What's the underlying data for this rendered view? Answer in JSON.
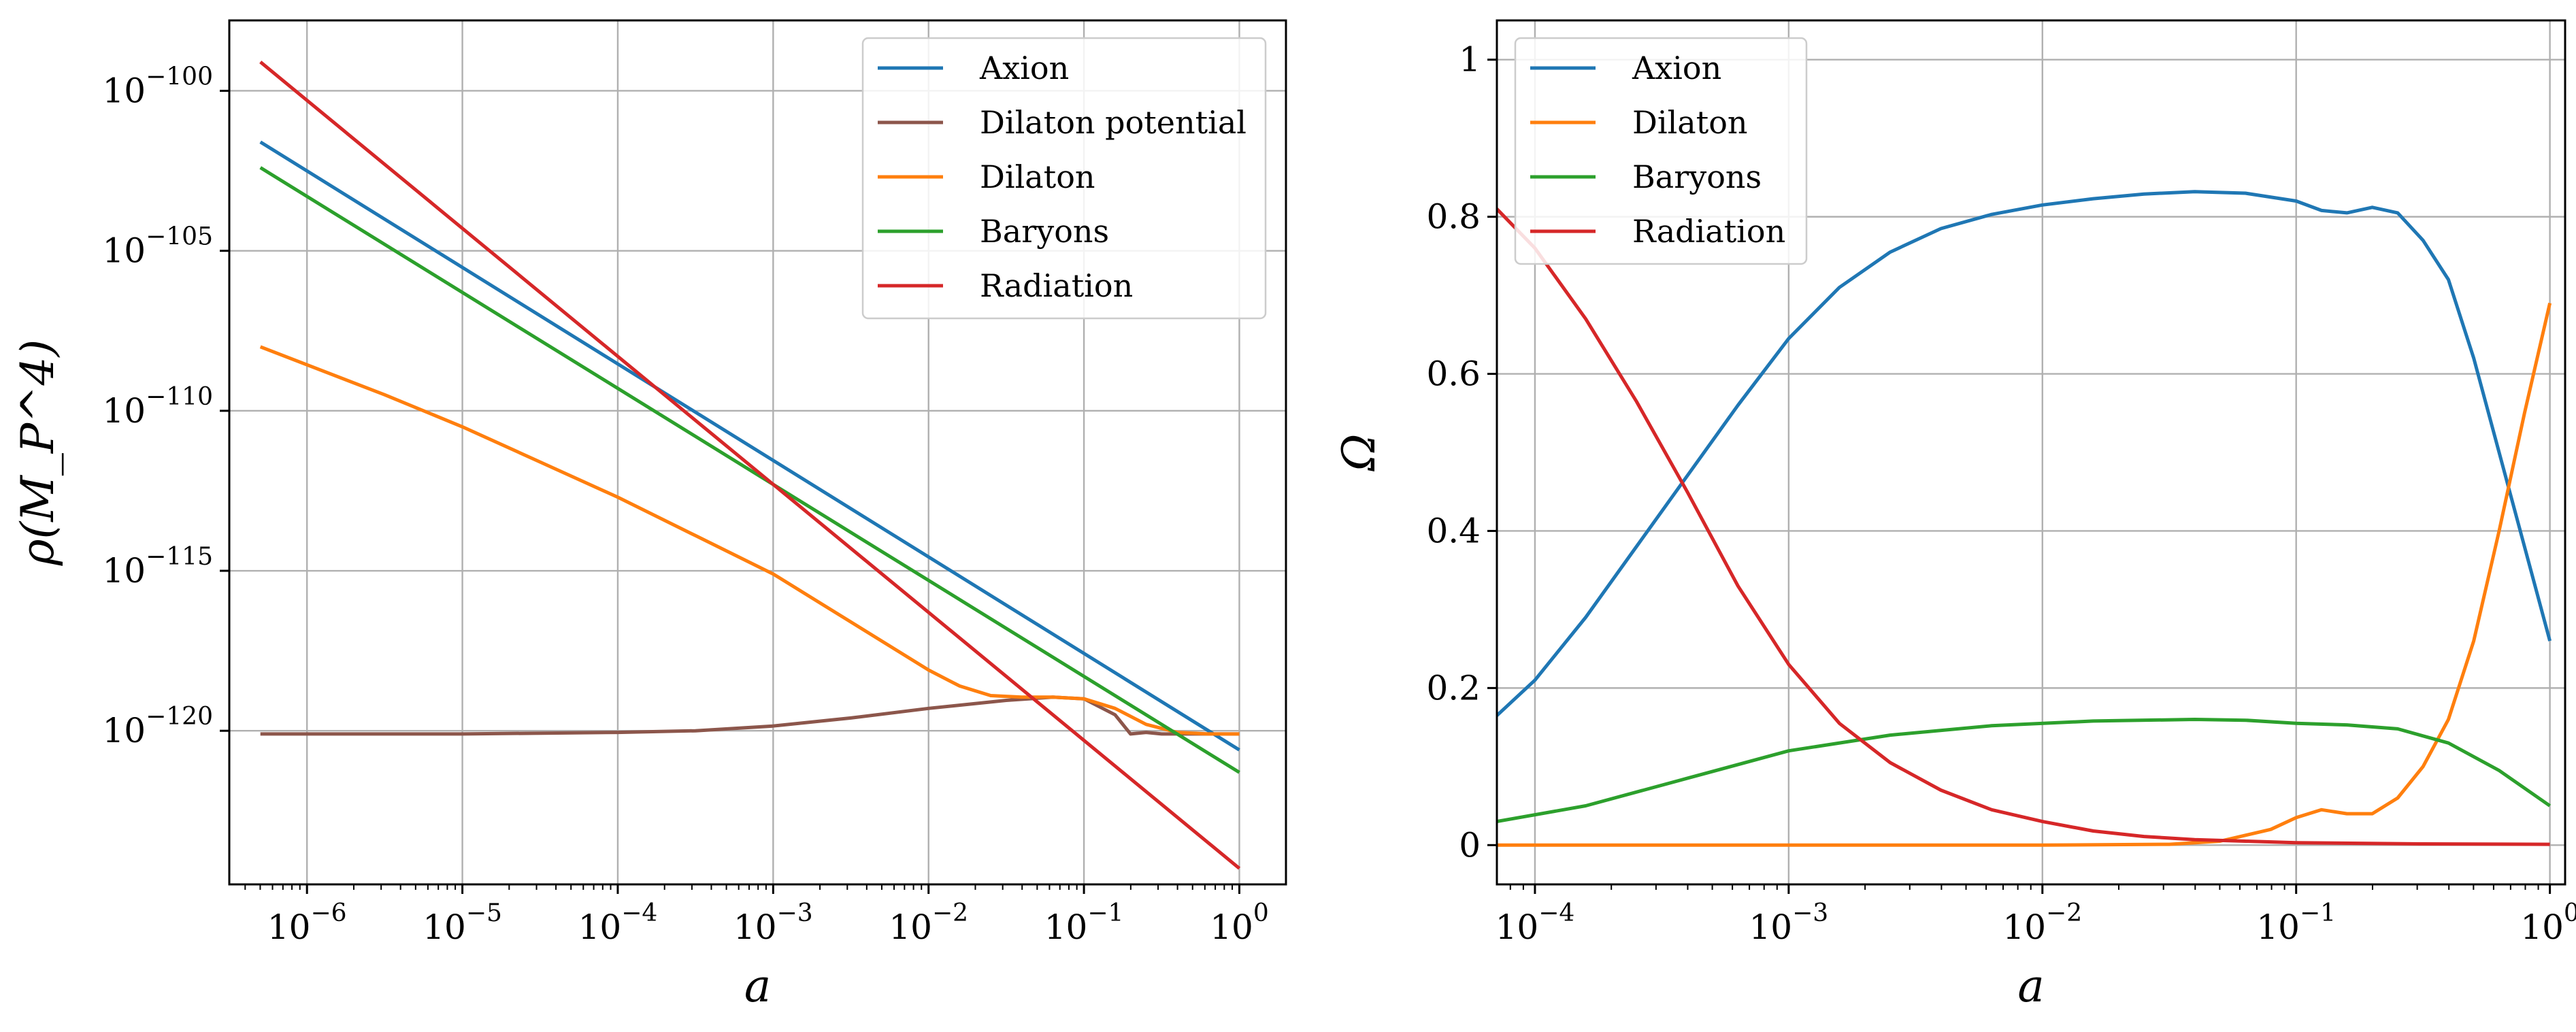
{
  "chart_data": [
    {
      "type": "line",
      "xscale": "log",
      "yscale": "log",
      "xlabel": "a",
      "ylabel": "ρ(M_P^4)",
      "xlim_log10": [
        -6.5,
        0.3
      ],
      "ylim_log10": [
        -124.8,
        -97.8
      ],
      "xticks": [
        {
          "base": "10",
          "exp": "−6",
          "log10": -6
        },
        {
          "base": "10",
          "exp": "−5",
          "log10": -5
        },
        {
          "base": "10",
          "exp": "−4",
          "log10": -4
        },
        {
          "base": "10",
          "exp": "−3",
          "log10": -3
        },
        {
          "base": "10",
          "exp": "−2",
          "log10": -2
        },
        {
          "base": "10",
          "exp": "−1",
          "log10": -1
        },
        {
          "base": "10",
          "exp": "0",
          "log10": 0
        }
      ],
      "yticks": [
        {
          "base": "10",
          "exp": "−100",
          "log10": -100
        },
        {
          "base": "10",
          "exp": "−105",
          "log10": -105
        },
        {
          "base": "10",
          "exp": "−110",
          "log10": -110
        },
        {
          "base": "10",
          "exp": "−115",
          "log10": -115
        },
        {
          "base": "10",
          "exp": "−120",
          "log10": -120
        }
      ],
      "legend_position": "top-right",
      "series": [
        {
          "name": "Axion",
          "color": "#1f77b4",
          "log10_x": [
            -6.3,
            0
          ],
          "log10_y": [
            -101.6,
            -120.6
          ]
        },
        {
          "name": "Dilaton potential",
          "color": "#8c564b",
          "log10_x": [
            -6.3,
            -5,
            -4,
            -3.5,
            -3,
            -2.5,
            -2,
            -1.5,
            -1.2,
            -1,
            -0.8,
            -0.7,
            -0.6,
            -0.5,
            -0.3,
            0
          ],
          "log10_y": [
            -120.1,
            -120.1,
            -120.05,
            -120.0,
            -119.85,
            -119.6,
            -119.3,
            -119.05,
            -118.95,
            -119.0,
            -119.5,
            -120.1,
            -120.05,
            -120.1,
            -120.1,
            -120.1
          ]
        },
        {
          "name": "Dilaton",
          "color": "#ff7f0e",
          "log10_x": [
            -6.3,
            -5.5,
            -5,
            -4.5,
            -4,
            -3.5,
            -3,
            -2.5,
            -2,
            -1.8,
            -1.6,
            -1.4,
            -1.2,
            -1,
            -0.8,
            -0.6,
            -0.4,
            -0.2,
            0
          ],
          "log10_y": [
            -108.0,
            -109.5,
            -110.5,
            -111.6,
            -112.7,
            -113.9,
            -115.1,
            -116.6,
            -118.1,
            -118.6,
            -118.9,
            -118.95,
            -118.95,
            -119.0,
            -119.3,
            -119.8,
            -120.05,
            -120.1,
            -120.1
          ]
        },
        {
          "name": "Baryons",
          "color": "#2ca02c",
          "log10_x": [
            -6.3,
            0
          ],
          "log10_y": [
            -102.4,
            -121.3
          ]
        },
        {
          "name": "Radiation",
          "color": "#d62728",
          "log10_x": [
            -6.3,
            0
          ],
          "log10_y": [
            -99.1,
            -124.3
          ]
        }
      ]
    },
    {
      "type": "line",
      "xscale": "log",
      "yscale": "linear",
      "xlabel": "a",
      "ylabel": "Ω",
      "xlim_log10": [
        -4.15,
        0.06
      ],
      "ylim": [
        -0.05,
        1.05
      ],
      "xticks": [
        {
          "base": "10",
          "exp": "−4",
          "log10": -4
        },
        {
          "base": "10",
          "exp": "−3",
          "log10": -3
        },
        {
          "base": "10",
          "exp": "−2",
          "log10": -2
        },
        {
          "base": "10",
          "exp": "−1",
          "log10": -1
        },
        {
          "base": "10",
          "exp": "0",
          "log10": 0
        }
      ],
      "yticks": [
        {
          "label": "0",
          "value": 0
        },
        {
          "label": "0.2",
          "value": 0.2
        },
        {
          "label": "0.4",
          "value": 0.4
        },
        {
          "label": "0.6",
          "value": 0.6
        },
        {
          "label": "0.8",
          "value": 0.8
        },
        {
          "label": "1",
          "value": 1
        }
      ],
      "legend_position": "top-left",
      "series": [
        {
          "name": "Axion",
          "color": "#1f77b4",
          "log10_x": [
            -4.15,
            -4.0,
            -3.8,
            -3.6,
            -3.4,
            -3.2,
            -3.0,
            -2.8,
            -2.6,
            -2.4,
            -2.2,
            -2.0,
            -1.8,
            -1.6,
            -1.4,
            -1.2,
            -1.0,
            -0.9,
            -0.8,
            -0.7,
            -0.6,
            -0.5,
            -0.4,
            -0.3,
            -0.2,
            -0.1,
            0
          ],
          "y": [
            0.165,
            0.21,
            0.29,
            0.38,
            0.47,
            0.56,
            0.645,
            0.71,
            0.755,
            0.785,
            0.803,
            0.815,
            0.823,
            0.829,
            0.832,
            0.83,
            0.82,
            0.808,
            0.805,
            0.812,
            0.805,
            0.77,
            0.72,
            0.62,
            0.5,
            0.38,
            0.26
          ]
        },
        {
          "name": "Dilaton",
          "color": "#ff7f0e",
          "log10_x": [
            -4.15,
            -3.0,
            -2.0,
            -1.5,
            -1.3,
            -1.1,
            -1.0,
            -0.9,
            -0.8,
            -0.7,
            -0.6,
            -0.5,
            -0.4,
            -0.3,
            -0.2,
            -0.1,
            0
          ],
          "y": [
            0.0,
            0.0,
            0.0,
            0.001,
            0.005,
            0.02,
            0.035,
            0.045,
            0.04,
            0.04,
            0.06,
            0.1,
            0.16,
            0.26,
            0.4,
            0.55,
            0.69
          ]
        },
        {
          "name": "Baryons",
          "color": "#2ca02c",
          "log10_x": [
            -4.15,
            -3.8,
            -3.4,
            -3.0,
            -2.6,
            -2.2,
            -1.8,
            -1.4,
            -1.2,
            -1.0,
            -0.8,
            -0.6,
            -0.4,
            -0.2,
            0
          ],
          "y": [
            0.03,
            0.05,
            0.085,
            0.12,
            0.14,
            0.152,
            0.158,
            0.16,
            0.159,
            0.155,
            0.153,
            0.148,
            0.13,
            0.095,
            0.05
          ]
        },
        {
          "name": "Radiation",
          "color": "#d62728",
          "log10_x": [
            -4.15,
            -4.0,
            -3.8,
            -3.6,
            -3.4,
            -3.2,
            -3.0,
            -2.8,
            -2.6,
            -2.4,
            -2.2,
            -2.0,
            -1.8,
            -1.6,
            -1.4,
            -1.2,
            -1.0,
            -0.5,
            0
          ],
          "y": [
            0.81,
            0.76,
            0.67,
            0.565,
            0.45,
            0.33,
            0.23,
            0.155,
            0.105,
            0.07,
            0.045,
            0.03,
            0.018,
            0.011,
            0.007,
            0.005,
            0.003,
            0.0015,
            0.001
          ]
        }
      ]
    }
  ]
}
